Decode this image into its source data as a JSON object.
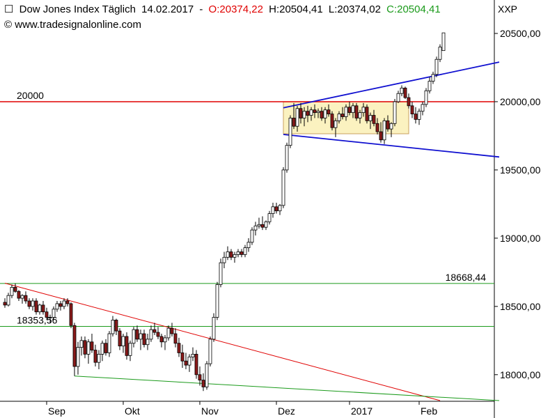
{
  "header": {
    "title": "Dow Jones Index Täglich",
    "date": "14.02.2017",
    "sep": "-",
    "open": "O:20374,22",
    "high": "H:20504,41",
    "low": "L:20374,02",
    "close": "C:20504,41",
    "url": "www.tradesignalonline.com",
    "symbol": "XXP"
  },
  "colors": {
    "up": "#ffffff",
    "down": "#8b1a1a",
    "level_red": "#e00000",
    "level_green": "#1a9a1a",
    "channel": "#1010d0",
    "box_fill": "#fbf2c0",
    "box_border": "#c8a060"
  },
  "chart_data": {
    "type": "candlestick",
    "y_ticks": [
      "20500,00",
      "20000,00",
      "19500,00",
      "19000,00",
      "18500,00",
      "18000,00"
    ],
    "y_tick_values": [
      20500,
      20000,
      19500,
      19000,
      18500,
      18000
    ],
    "ylim": [
      17805,
      20745
    ],
    "x_ticks": [
      "Sep",
      "Okt",
      "Nov",
      "Dez",
      "2017",
      "Feb"
    ],
    "x_tick_index": [
      12,
      34,
      56,
      78,
      99,
      119
    ],
    "levels": [
      {
        "label": "20000",
        "value": 20000,
        "color": "red"
      },
      {
        "label": "18668,44",
        "value": 18668.44,
        "color": "green"
      },
      {
        "label": "18353,56",
        "value": 18353.56,
        "color": "green"
      }
    ],
    "trendlines": [
      {
        "color": "red",
        "from": [
          0,
          18670
        ],
        "to": [
          125,
          17810
        ]
      },
      {
        "color": "green",
        "from": [
          20,
          17990
        ],
        "to": [
          142,
          17810
        ]
      },
      {
        "color": "blue",
        "from": [
          80,
          19955
        ],
        "to": [
          142,
          20290
        ]
      },
      {
        "color": "blue",
        "from": [
          80,
          19760
        ],
        "to": [
          142,
          19595
        ]
      }
    ],
    "consolidation_box": {
      "x_start": 80,
      "x_end": 116,
      "top": 20000,
      "bottom": 19765
    },
    "candles": [
      [
        18530,
        18560,
        18490,
        18510
      ],
      [
        18510,
        18600,
        18500,
        18580
      ],
      [
        18580,
        18660,
        18560,
        18640
      ],
      [
        18640,
        18668,
        18600,
        18610
      ],
      [
        18610,
        18620,
        18540,
        18560
      ],
      [
        18560,
        18590,
        18520,
        18580
      ],
      [
        18580,
        18610,
        18520,
        18540
      ],
      [
        18540,
        18560,
        18480,
        18500
      ],
      [
        18500,
        18560,
        18470,
        18540
      ],
      [
        18540,
        18560,
        18440,
        18460
      ],
      [
        18460,
        18520,
        18440,
        18510
      ],
      [
        18510,
        18540,
        18440,
        18460
      ],
      [
        18460,
        18490,
        18400,
        18420
      ],
      [
        18420,
        18440,
        18380,
        18420
      ],
      [
        18420,
        18500,
        18400,
        18480
      ],
      [
        18480,
        18540,
        18460,
        18520
      ],
      [
        18520,
        18540,
        18470,
        18500
      ],
      [
        18500,
        18560,
        18480,
        18540
      ],
      [
        18540,
        18560,
        18500,
        18520
      ],
      [
        18520,
        18530,
        18340,
        18360
      ],
      [
        18360,
        18380,
        17990,
        18060
      ],
      [
        18060,
        18240,
        18000,
        18200
      ],
      [
        18200,
        18280,
        18140,
        18250
      ],
      [
        18250,
        18280,
        18120,
        18150
      ],
      [
        18150,
        18260,
        18080,
        18240
      ],
      [
        18240,
        18300,
        18160,
        18180
      ],
      [
        18180,
        18220,
        18060,
        18090
      ],
      [
        18090,
        18180,
        18040,
        18150
      ],
      [
        18150,
        18250,
        18100,
        18230
      ],
      [
        18230,
        18260,
        18140,
        18160
      ],
      [
        18160,
        18320,
        18130,
        18300
      ],
      [
        18300,
        18430,
        18280,
        18400
      ],
      [
        18400,
        18410,
        18290,
        18320
      ],
      [
        18320,
        18340,
        18180,
        18210
      ],
      [
        18210,
        18300,
        18160,
        18280
      ],
      [
        18280,
        18310,
        18110,
        18140
      ],
      [
        18140,
        18250,
        18100,
        18230
      ],
      [
        18230,
        18350,
        18200,
        18330
      ],
      [
        18330,
        18360,
        18240,
        18260
      ],
      [
        18260,
        18330,
        18180,
        18300
      ],
      [
        18300,
        18330,
        18200,
        18220
      ],
      [
        18220,
        18300,
        18180,
        18260
      ],
      [
        18260,
        18360,
        18240,
        18330
      ],
      [
        18330,
        18380,
        18290,
        18310
      ],
      [
        18310,
        18350,
        18260,
        18280
      ],
      [
        18280,
        18300,
        18200,
        18240
      ],
      [
        18240,
        18290,
        18180,
        18270
      ],
      [
        18270,
        18360,
        18250,
        18340
      ],
      [
        18340,
        18380,
        18280,
        18300
      ],
      [
        18300,
        18340,
        18200,
        18230
      ],
      [
        18230,
        18270,
        18130,
        18160
      ],
      [
        18160,
        18220,
        18050,
        18100
      ],
      [
        18100,
        18160,
        18040,
        18070
      ],
      [
        18070,
        18150,
        18020,
        18130
      ],
      [
        18130,
        18200,
        18100,
        18150
      ],
      [
        18150,
        18180,
        17970,
        18000
      ],
      [
        18000,
        18060,
        17920,
        17960
      ],
      [
        17960,
        18010,
        17880,
        17910
      ],
      [
        17910,
        18100,
        17890,
        18080
      ],
      [
        18080,
        18280,
        18060,
        18260
      ],
      [
        18260,
        18450,
        18240,
        18420
      ],
      [
        18420,
        18680,
        18400,
        18660
      ],
      [
        18660,
        18850,
        18640,
        18820
      ],
      [
        18820,
        18900,
        18780,
        18860
      ],
      [
        18860,
        18940,
        18840,
        18900
      ],
      [
        18900,
        18920,
        18840,
        18860
      ],
      [
        18860,
        18900,
        18820,
        18880
      ],
      [
        18880,
        18920,
        18860,
        18900
      ],
      [
        18900,
        18920,
        18860,
        18880
      ],
      [
        18880,
        18950,
        18860,
        18930
      ],
      [
        18930,
        19000,
        18900,
        18970
      ],
      [
        18970,
        19080,
        18950,
        19060
      ],
      [
        19060,
        19120,
        19020,
        19090
      ],
      [
        19090,
        19150,
        19070,
        19100
      ],
      [
        19100,
        19160,
        19060,
        19080
      ],
      [
        19080,
        19130,
        19060,
        19120
      ],
      [
        19120,
        19200,
        19100,
        19180
      ],
      [
        19180,
        19260,
        19150,
        19230
      ],
      [
        19230,
        19260,
        19180,
        19200
      ],
      [
        19200,
        19250,
        19170,
        19240
      ],
      [
        19240,
        19520,
        19220,
        19500
      ],
      [
        19500,
        19700,
        19480,
        19680
      ],
      [
        19680,
        19900,
        19660,
        19880
      ],
      [
        19880,
        19990,
        19800,
        19820
      ],
      [
        19820,
        19970,
        19780,
        19950
      ],
      [
        19950,
        19990,
        19840,
        19880
      ],
      [
        19880,
        19960,
        19820,
        19930
      ],
      [
        19930,
        19970,
        19850,
        19900
      ],
      [
        19900,
        19960,
        19860,
        19940
      ],
      [
        19940,
        19980,
        19880,
        19920
      ],
      [
        19920,
        19950,
        19880,
        19930
      ],
      [
        19930,
        19960,
        19860,
        19880
      ],
      [
        19880,
        19960,
        19840,
        19940
      ],
      [
        19940,
        19980,
        19890,
        19910
      ],
      [
        19910,
        19930,
        19790,
        19810
      ],
      [
        19810,
        19880,
        19740,
        19860
      ],
      [
        19860,
        19930,
        19840,
        19910
      ],
      [
        19910,
        19960,
        19870,
        19890
      ],
      [
        19890,
        19980,
        19860,
        19960
      ],
      [
        19960,
        20000,
        19900,
        19920
      ],
      [
        19920,
        19990,
        19880,
        19970
      ],
      [
        19970,
        19990,
        19860,
        19880
      ],
      [
        19880,
        19940,
        19840,
        19920
      ],
      [
        19920,
        19990,
        19890,
        19960
      ],
      [
        19960,
        19980,
        19840,
        19860
      ],
      [
        19860,
        19920,
        19800,
        19900
      ],
      [
        19900,
        19940,
        19820,
        19840
      ],
      [
        19840,
        19880,
        19760,
        19780
      ],
      [
        19780,
        19850,
        19700,
        19720
      ],
      [
        19720,
        19880,
        19690,
        19860
      ],
      [
        19860,
        19900,
        19780,
        19800
      ],
      [
        19800,
        19850,
        19740,
        19840
      ],
      [
        19840,
        20020,
        19820,
        20000
      ],
      [
        20000,
        20080,
        19990,
        20060
      ],
      [
        20060,
        20120,
        20040,
        20100
      ],
      [
        20100,
        20110,
        20020,
        20030
      ],
      [
        20030,
        20060,
        19950,
        19970
      ],
      [
        19970,
        20000,
        19880,
        19910
      ],
      [
        19910,
        19960,
        19840,
        19870
      ],
      [
        19870,
        19950,
        19830,
        19930
      ],
      [
        19930,
        20000,
        19900,
        19980
      ],
      [
        19980,
        20100,
        19960,
        20080
      ],
      [
        20080,
        20180,
        20060,
        20150
      ],
      [
        20150,
        20220,
        20130,
        20200
      ],
      [
        20200,
        20330,
        20180,
        20310
      ],
      [
        20310,
        20420,
        20290,
        20400
      ],
      [
        20374.22,
        20504.41,
        20374.02,
        20504.41
      ]
    ]
  }
}
